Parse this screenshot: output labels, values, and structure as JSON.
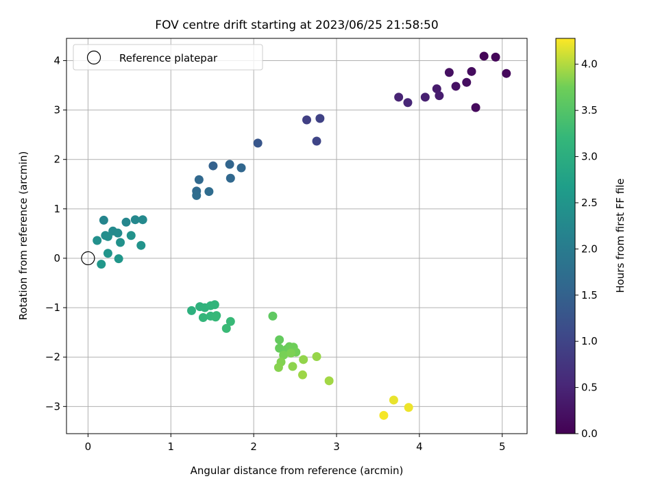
{
  "chart_data": {
    "type": "scatter",
    "title": "FOV centre drift starting at 2023/06/25 21:58:50",
    "xlabel": "Angular distance from reference (arcmin)",
    "ylabel": "Rotation from reference (arcmin)",
    "xlim": [
      -0.26,
      5.3
    ],
    "ylim": [
      -3.55,
      4.45
    ],
    "xticks": [
      0,
      1,
      2,
      3,
      4,
      5
    ],
    "yticks": [
      -3,
      -2,
      -1,
      0,
      1,
      2,
      3,
      4
    ],
    "grid": true,
    "legend": {
      "position": "top-left",
      "entries": [
        "Reference platepar"
      ]
    },
    "reference_point": {
      "label": "Reference platepar",
      "x": 0,
      "y": 0,
      "marker": "open-circle"
    },
    "colorbar": {
      "label": "Hours from first FF file",
      "colormap": "viridis",
      "range": [
        0,
        4.28
      ],
      "ticks": [
        "0.0",
        "0.5",
        "1.0",
        "1.5",
        "2.0",
        "2.5",
        "3.0",
        "3.5",
        "4.0"
      ]
    },
    "points": [
      {
        "x": 4.78,
        "y": 4.09,
        "h": 0.05
      },
      {
        "x": 4.92,
        "y": 4.07,
        "h": 0.08
      },
      {
        "x": 5.05,
        "y": 3.74,
        "h": 0.1
      },
      {
        "x": 4.68,
        "y": 3.05,
        "h": 0.12
      },
      {
        "x": 4.63,
        "y": 3.78,
        "h": 0.15
      },
      {
        "x": 4.57,
        "y": 3.56,
        "h": 0.18
      },
      {
        "x": 4.36,
        "y": 3.76,
        "h": 0.2
      },
      {
        "x": 4.44,
        "y": 3.48,
        "h": 0.22
      },
      {
        "x": 4.21,
        "y": 3.43,
        "h": 0.35
      },
      {
        "x": 4.24,
        "y": 3.29,
        "h": 0.38
      },
      {
        "x": 4.07,
        "y": 3.26,
        "h": 0.42
      },
      {
        "x": 3.75,
        "y": 3.26,
        "h": 0.48
      },
      {
        "x": 3.86,
        "y": 3.15,
        "h": 0.52
      },
      {
        "x": 2.64,
        "y": 2.8,
        "h": 0.92
      },
      {
        "x": 2.8,
        "y": 2.83,
        "h": 0.95
      },
      {
        "x": 2.76,
        "y": 2.37,
        "h": 1.0
      },
      {
        "x": 2.05,
        "y": 2.33,
        "h": 1.3
      },
      {
        "x": 1.51,
        "y": 1.87,
        "h": 1.5
      },
      {
        "x": 1.71,
        "y": 1.9,
        "h": 1.55
      },
      {
        "x": 1.85,
        "y": 1.83,
        "h": 1.58
      },
      {
        "x": 1.72,
        "y": 1.62,
        "h": 1.6
      },
      {
        "x": 1.34,
        "y": 1.59,
        "h": 1.62
      },
      {
        "x": 1.31,
        "y": 1.36,
        "h": 1.65
      },
      {
        "x": 1.46,
        "y": 1.35,
        "h": 1.68
      },
      {
        "x": 1.31,
        "y": 1.27,
        "h": 1.7
      },
      {
        "x": 0.19,
        "y": 0.77,
        "h": 2.2
      },
      {
        "x": 0.46,
        "y": 0.73,
        "h": 2.22
      },
      {
        "x": 0.57,
        "y": 0.78,
        "h": 2.25
      },
      {
        "x": 0.66,
        "y": 0.78,
        "h": 2.27
      },
      {
        "x": 0.3,
        "y": 0.55,
        "h": 2.3
      },
      {
        "x": 0.36,
        "y": 0.51,
        "h": 2.32
      },
      {
        "x": 0.21,
        "y": 0.46,
        "h": 2.35
      },
      {
        "x": 0.24,
        "y": 0.44,
        "h": 2.37
      },
      {
        "x": 0.11,
        "y": 0.36,
        "h": 2.4
      },
      {
        "x": 0.39,
        "y": 0.32,
        "h": 2.42
      },
      {
        "x": 0.52,
        "y": 0.46,
        "h": 2.45
      },
      {
        "x": 0.64,
        "y": 0.26,
        "h": 2.47
      },
      {
        "x": 0.24,
        "y": 0.1,
        "h": 2.5
      },
      {
        "x": 0.37,
        "y": -0.01,
        "h": 2.52
      },
      {
        "x": 0.16,
        "y": -0.12,
        "h": 2.55
      },
      {
        "x": 1.25,
        "y": -1.06,
        "h": 3.05
      },
      {
        "x": 1.35,
        "y": -0.98,
        "h": 3.08
      },
      {
        "x": 1.41,
        "y": -1.0,
        "h": 3.1
      },
      {
        "x": 1.48,
        "y": -0.96,
        "h": 3.12
      },
      {
        "x": 1.53,
        "y": -0.94,
        "h": 3.14
      },
      {
        "x": 1.39,
        "y": -1.2,
        "h": 3.16
      },
      {
        "x": 1.48,
        "y": -1.17,
        "h": 3.18
      },
      {
        "x": 1.55,
        "y": -1.16,
        "h": 3.2
      },
      {
        "x": 1.54,
        "y": -1.19,
        "h": 3.22
      },
      {
        "x": 1.72,
        "y": -1.28,
        "h": 3.24
      },
      {
        "x": 1.67,
        "y": -1.42,
        "h": 3.26
      },
      {
        "x": 2.23,
        "y": -1.17,
        "h": 3.6
      },
      {
        "x": 2.31,
        "y": -1.65,
        "h": 3.65
      },
      {
        "x": 2.31,
        "y": -1.82,
        "h": 3.68
      },
      {
        "x": 2.4,
        "y": -1.84,
        "h": 3.7
      },
      {
        "x": 2.43,
        "y": -1.79,
        "h": 3.72
      },
      {
        "x": 2.48,
        "y": -1.8,
        "h": 3.74
      },
      {
        "x": 2.51,
        "y": -1.9,
        "h": 3.76
      },
      {
        "x": 2.36,
        "y": -1.96,
        "h": 3.78
      },
      {
        "x": 2.45,
        "y": -1.92,
        "h": 3.8
      },
      {
        "x": 2.33,
        "y": -2.1,
        "h": 3.82
      },
      {
        "x": 2.3,
        "y": -2.21,
        "h": 3.84
      },
      {
        "x": 2.47,
        "y": -2.19,
        "h": 3.86
      },
      {
        "x": 2.6,
        "y": -2.05,
        "h": 3.88
      },
      {
        "x": 2.76,
        "y": -1.99,
        "h": 3.9
      },
      {
        "x": 2.59,
        "y": -2.36,
        "h": 3.92
      },
      {
        "x": 2.91,
        "y": -2.48,
        "h": 3.94
      },
      {
        "x": 3.69,
        "y": -2.87,
        "h": 4.2
      },
      {
        "x": 3.87,
        "y": -3.02,
        "h": 4.22
      },
      {
        "x": 3.57,
        "y": -3.18,
        "h": 4.25
      }
    ]
  }
}
